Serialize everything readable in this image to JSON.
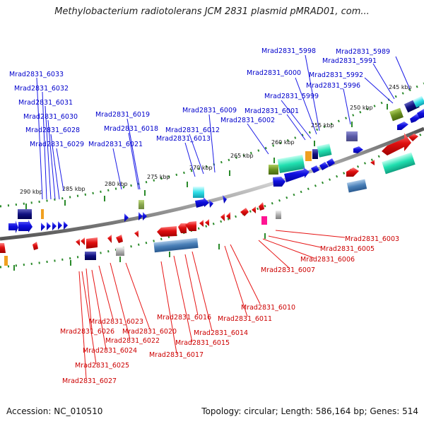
{
  "title": "Methylobacterium radiotolerans JCM 2831 plasmid pMRAD01, com...",
  "footer": {
    "accession": "Accession: NC_010510",
    "summary": "Topology: circular; Length: 586,164 bp; Genes: 514"
  },
  "scale_labels": [
    "290 kbp",
    "285 kbp",
    "280 kbp",
    "275 kbp",
    "270 kbp",
    "265 kbp",
    "260 kbp",
    "255 kbp",
    "250 kbp",
    "245 kbp"
  ],
  "upper_labels": [
    "Mrad2831_6033",
    "Mrad2831_6032",
    "Mrad2831_6031",
    "Mrad2831_6030",
    "Mrad2831_6028",
    "Mrad2831_6029",
    "Mrad2831_6019",
    "Mrad2831_6018",
    "Mrad2831_6021",
    "Mrad2831_6009",
    "Mrad2831_6012",
    "Mrad2831_6013",
    "Mrad2831_6002",
    "Mrad2831_6001",
    "Mrad2831_5999",
    "Mrad2831_6000",
    "Mrad2831_5998",
    "Mrad2831_5996",
    "Mrad2831_5992",
    "Mrad2831_5991",
    "Mrad2831_5989"
  ],
  "lower_labels": [
    "Mrad2831_6003",
    "Mrad2831_6005",
    "Mrad2831_6006",
    "Mrad2831_6007",
    "Mrad2831_6010",
    "Mrad2831_6011",
    "Mrad2831_6016",
    "Mrad2831_6014",
    "Mrad2831_6015",
    "Mrad2831_6017",
    "Mrad2831_6023",
    "Mrad2831_6020",
    "Mrad2831_6026",
    "Mrad2831_6022",
    "Mrad2831_6024",
    "Mrad2831_6025",
    "Mrad2831_6027"
  ],
  "colors": {
    "label_upper": "#0000cc",
    "label_lower": "#cc0000",
    "forward_gene": "#1a1ae6",
    "reverse_gene": "#e61414",
    "backbone": "#777777",
    "tick": "#2a8a2a"
  }
}
